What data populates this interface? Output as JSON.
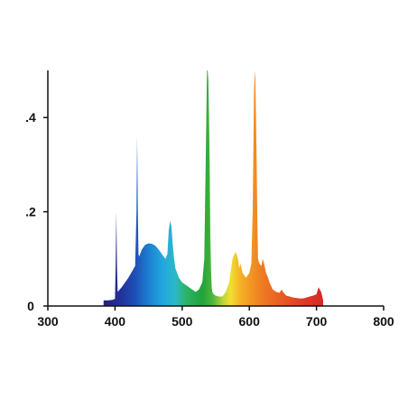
{
  "chart_data": {
    "type": "area",
    "title": "",
    "xlabel": "",
    "ylabel": "",
    "xlim": [
      300,
      800
    ],
    "ylim": [
      0,
      0.5
    ],
    "grid": false,
    "legend": "none",
    "x_ticks": [
      300,
      400,
      500,
      600,
      700,
      800
    ],
    "x_tick_labels": [
      "300",
      "400",
      "500",
      "600",
      "700",
      "800"
    ],
    "y_ticks": [
      0,
      0.2,
      0.4
    ],
    "y_tick_labels": [
      "0",
      ".2",
      ".4"
    ],
    "fill": "visible-spectrum gradient (violet to red by wavelength)",
    "series": [
      {
        "x": [
          383,
          390,
          396,
          400,
          401,
          402,
          403,
          404,
          407,
          410,
          420,
          430,
          432,
          433,
          434,
          435,
          436,
          440,
          445,
          450,
          455,
          460,
          465,
          470,
          475,
          478,
          480,
          482,
          484,
          486,
          488,
          490,
          495,
          500,
          505,
          510,
          515,
          520,
          525,
          530,
          533,
          535,
          537,
          538,
          539,
          540,
          541,
          542,
          543,
          544,
          545,
          547,
          550,
          555,
          560,
          565,
          570,
          575,
          578,
          580,
          583,
          585,
          587,
          590,
          595,
          600,
          603,
          605,
          607,
          608,
          609,
          610,
          611,
          612,
          613,
          615,
          618,
          620,
          622,
          625,
          628,
          630,
          635,
          640,
          645,
          648,
          650,
          655,
          660,
          665,
          670,
          675,
          680,
          685,
          690,
          695,
          700,
          703,
          705,
          707,
          710
        ],
        "y": [
          0.012,
          0.012,
          0.013,
          0.015,
          0.09,
          0.2,
          0.08,
          0.03,
          0.035,
          0.04,
          0.06,
          0.085,
          0.2,
          0.36,
          0.2,
          0.11,
          0.105,
          0.12,
          0.13,
          0.133,
          0.132,
          0.128,
          0.12,
          0.11,
          0.1,
          0.11,
          0.16,
          0.18,
          0.17,
          0.13,
          0.1,
          0.08,
          0.06,
          0.05,
          0.045,
          0.04,
          0.035,
          0.03,
          0.035,
          0.05,
          0.1,
          0.3,
          0.5,
          0.5,
          0.48,
          0.4,
          0.3,
          0.15,
          0.08,
          0.04,
          0.03,
          0.025,
          0.022,
          0.02,
          0.02,
          0.03,
          0.05,
          0.1,
          0.11,
          0.115,
          0.1,
          0.08,
          0.09,
          0.07,
          0.06,
          0.07,
          0.09,
          0.2,
          0.45,
          0.5,
          0.48,
          0.4,
          0.3,
          0.18,
          0.1,
          0.09,
          0.085,
          0.1,
          0.09,
          0.07,
          0.06,
          0.05,
          0.035,
          0.03,
          0.028,
          0.035,
          0.03,
          0.022,
          0.02,
          0.018,
          0.017,
          0.016,
          0.016,
          0.018,
          0.02,
          0.022,
          0.025,
          0.04,
          0.035,
          0.03,
          0.012
        ]
      }
    ]
  }
}
